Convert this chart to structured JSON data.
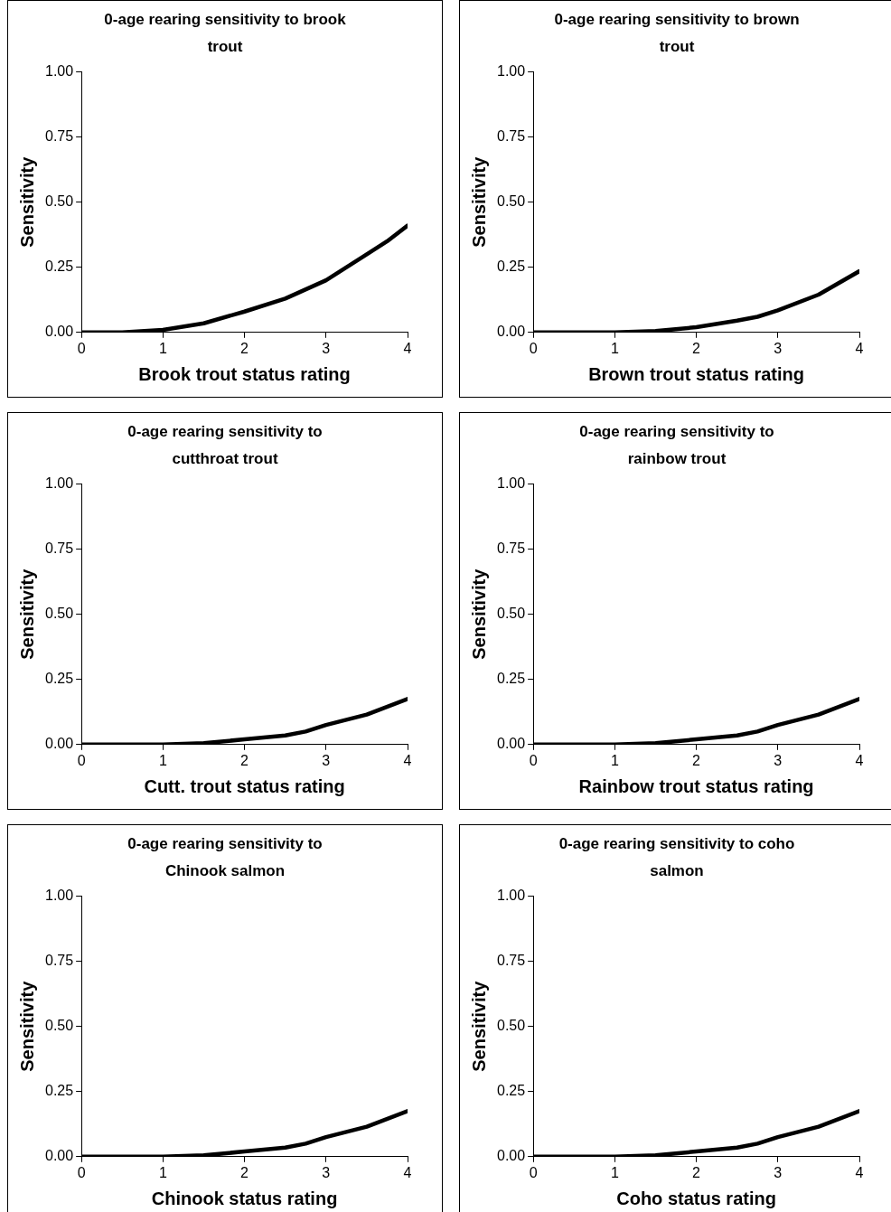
{
  "chart_data": [
    {
      "type": "line",
      "title": "0-age rearing sensitivity to brook trout",
      "xlabel": "Brook trout status rating",
      "ylabel": "Sensitivity",
      "x": [
        0,
        0.5,
        1,
        1.5,
        2,
        2.5,
        3,
        3.5,
        3.75,
        4
      ],
      "series": [
        {
          "color": "#000000",
          "values": [
            0,
            0,
            0.01,
            0.035,
            0.08,
            0.13,
            0.2,
            0.3,
            0.35,
            0.41
          ]
        }
      ],
      "xlim": [
        0,
        4
      ],
      "xticks": [
        0,
        1,
        2,
        3,
        4
      ],
      "ylim": [
        0,
        1
      ],
      "yticks": [
        {
          "value": 0,
          "label": "0.00"
        },
        {
          "value": 0.25,
          "label": "0.25"
        },
        {
          "value": 0.5,
          "label": "0.50"
        },
        {
          "value": 0.75,
          "label": "0.75"
        },
        {
          "value": 1,
          "label": "1.00"
        }
      ],
      "grid": false,
      "legend": false,
      "marker": "none",
      "line_style": "solid"
    },
    {
      "type": "line",
      "title": "0-age rearing sensitivity to brown trout",
      "xlabel": "Brown trout status rating",
      "ylabel": "Sensitivity",
      "x": [
        0,
        1,
        1.5,
        2,
        2.5,
        2.75,
        3,
        3.5,
        4
      ],
      "series": [
        {
          "color": "#000000",
          "values": [
            0,
            0,
            0.005,
            0.02,
            0.045,
            0.06,
            0.085,
            0.145,
            0.235
          ]
        }
      ],
      "xlim": [
        0,
        4
      ],
      "xticks": [
        0,
        1,
        2,
        3,
        4
      ],
      "ylim": [
        0,
        1
      ],
      "yticks": [
        {
          "value": 0,
          "label": "0.00"
        },
        {
          "value": 0.25,
          "label": "0.25"
        },
        {
          "value": 0.5,
          "label": "0.50"
        },
        {
          "value": 0.75,
          "label": "0.75"
        },
        {
          "value": 1,
          "label": "1.00"
        }
      ],
      "grid": false,
      "legend": false,
      "marker": "none",
      "line_style": "solid"
    },
    {
      "type": "line",
      "title": "0-age rearing sensitivity to cutthroat trout",
      "xlabel": "Cutt. trout status rating",
      "ylabel": "Sensitivity",
      "x": [
        0,
        1,
        1.5,
        2,
        2.5,
        2.75,
        3,
        3.5,
        4
      ],
      "series": [
        {
          "color": "#000000",
          "values": [
            0,
            0,
            0.005,
            0.02,
            0.035,
            0.05,
            0.075,
            0.115,
            0.175
          ]
        }
      ],
      "xlim": [
        0,
        4
      ],
      "xticks": [
        0,
        1,
        2,
        3,
        4
      ],
      "ylim": [
        0,
        1
      ],
      "yticks": [
        {
          "value": 0,
          "label": "0.00"
        },
        {
          "value": 0.25,
          "label": "0.25"
        },
        {
          "value": 0.5,
          "label": "0.50"
        },
        {
          "value": 0.75,
          "label": "0.75"
        },
        {
          "value": 1,
          "label": "1.00"
        }
      ],
      "grid": false,
      "legend": false,
      "marker": "none",
      "line_style": "solid"
    },
    {
      "type": "line",
      "title": "0-age rearing sensitivity to rainbow trout",
      "xlabel": "Rainbow trout status rating",
      "ylabel": "Sensitivity",
      "x": [
        0,
        1,
        1.5,
        2,
        2.5,
        2.75,
        3,
        3.5,
        4
      ],
      "series": [
        {
          "color": "#000000",
          "values": [
            0,
            0,
            0.005,
            0.02,
            0.035,
            0.05,
            0.075,
            0.115,
            0.175
          ]
        }
      ],
      "xlim": [
        0,
        4
      ],
      "xticks": [
        0,
        1,
        2,
        3,
        4
      ],
      "ylim": [
        0,
        1
      ],
      "yticks": [
        {
          "value": 0,
          "label": "0.00"
        },
        {
          "value": 0.25,
          "label": "0.25"
        },
        {
          "value": 0.5,
          "label": "0.50"
        },
        {
          "value": 0.75,
          "label": "0.75"
        },
        {
          "value": 1,
          "label": "1.00"
        }
      ],
      "grid": false,
      "legend": false,
      "marker": "none",
      "line_style": "solid"
    },
    {
      "type": "line",
      "title": "0-age rearing sensitivity to Chinook salmon",
      "xlabel": "Chinook status rating",
      "ylabel": "Sensitivity",
      "x": [
        0,
        1,
        1.5,
        2,
        2.5,
        2.75,
        3,
        3.5,
        4
      ],
      "series": [
        {
          "color": "#000000",
          "values": [
            0,
            0,
            0.005,
            0.02,
            0.035,
            0.05,
            0.075,
            0.115,
            0.175
          ]
        }
      ],
      "xlim": [
        0,
        4
      ],
      "xticks": [
        0,
        1,
        2,
        3,
        4
      ],
      "ylim": [
        0,
        1
      ],
      "yticks": [
        {
          "value": 0,
          "label": "0.00"
        },
        {
          "value": 0.25,
          "label": "0.25"
        },
        {
          "value": 0.5,
          "label": "0.50"
        },
        {
          "value": 0.75,
          "label": "0.75"
        },
        {
          "value": 1,
          "label": "1.00"
        }
      ],
      "grid": false,
      "legend": false,
      "marker": "none",
      "line_style": "solid"
    },
    {
      "type": "line",
      "title": "0-age rearing sensitivity to coho salmon",
      "xlabel": "Coho status rating",
      "ylabel": "Sensitivity",
      "x": [
        0,
        1,
        1.5,
        2,
        2.5,
        2.75,
        3,
        3.5,
        4
      ],
      "series": [
        {
          "color": "#000000",
          "values": [
            0,
            0,
            0.005,
            0.02,
            0.035,
            0.05,
            0.075,
            0.115,
            0.175
          ]
        }
      ],
      "xlim": [
        0,
        4
      ],
      "xticks": [
        0,
        1,
        2,
        3,
        4
      ],
      "ylim": [
        0,
        1
      ],
      "yticks": [
        {
          "value": 0,
          "label": "0.00"
        },
        {
          "value": 0.25,
          "label": "0.25"
        },
        {
          "value": 0.5,
          "label": "0.50"
        },
        {
          "value": 0.75,
          "label": "0.75"
        },
        {
          "value": 1,
          "label": "1.00"
        }
      ],
      "grid": false,
      "legend": false,
      "marker": "none",
      "line_style": "solid"
    }
  ]
}
